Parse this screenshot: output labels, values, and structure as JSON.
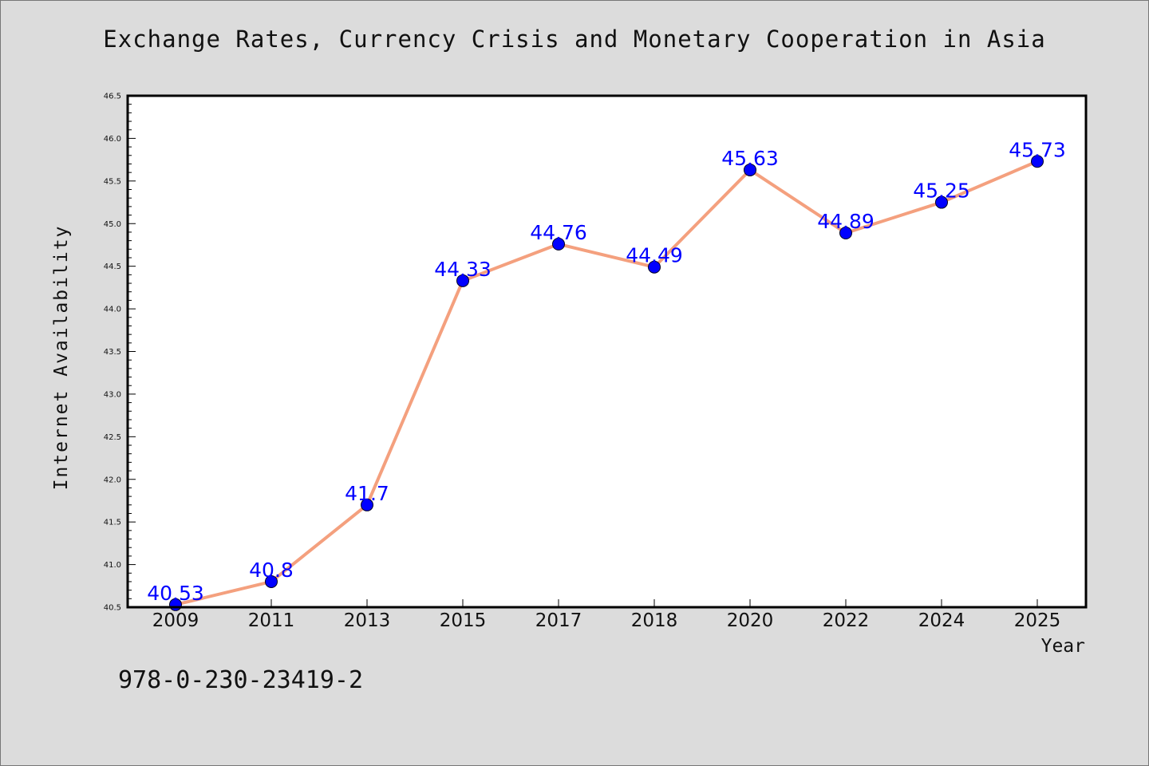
{
  "page": {
    "background": "#dcdcdc",
    "footnote": "978-0-230-23419-2"
  },
  "chart_data": {
    "type": "line",
    "title": "Exchange Rates, Currency Crisis and Monetary Cooperation in Asia",
    "xlabel": "Year",
    "ylabel": "Internet Availability",
    "categories": [
      "2009",
      "2011",
      "2013",
      "2015",
      "2017",
      "2018",
      "2020",
      "2022",
      "2024",
      "2025"
    ],
    "series": [
      {
        "values": [
          40.53,
          40.8,
          41.7,
          44.33,
          44.76,
          44.49,
          45.63,
          44.89,
          45.25,
          45.73
        ],
        "line_color": "#f4a07e",
        "marker_color": "#0000ff"
      }
    ],
    "data_labels": [
      "40.53",
      "40.8",
      "41.7",
      "44.33",
      "44.76",
      "44.49",
      "45.63",
      "44.89",
      "45.25",
      "45.73"
    ],
    "ylim": [
      40.5,
      46.5
    ],
    "yticks": [
      "40.5",
      "41.0",
      "41.5",
      "42.0",
      "42.5",
      "43.0",
      "43.5",
      "44.0",
      "44.5",
      "45.0",
      "45.5",
      "46.0",
      "46.5"
    ],
    "grid": false,
    "legend": "none"
  }
}
